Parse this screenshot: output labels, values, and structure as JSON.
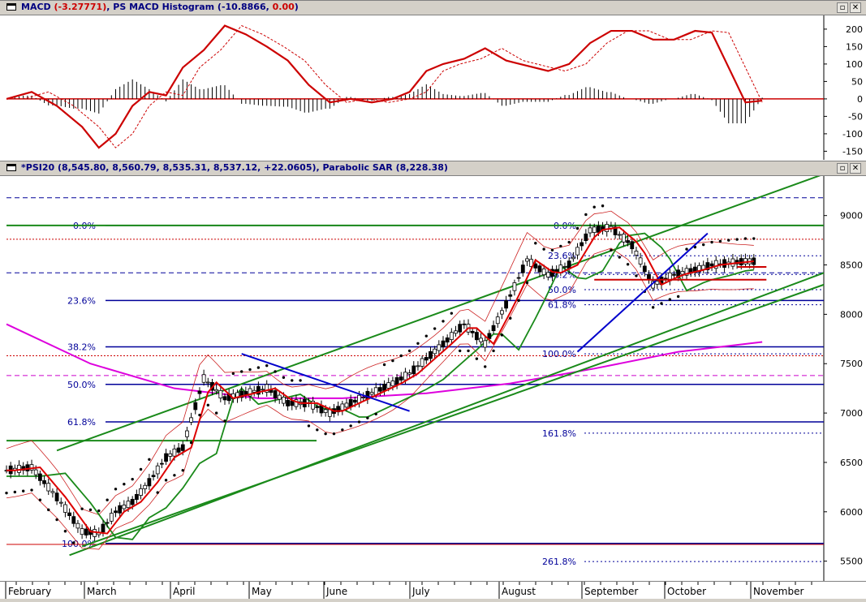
{
  "macd_pane": {
    "label_name": "MACD",
    "label_value": "(-3.27771)",
    "label_hist_name": ", PS MACD Histogram",
    "label_hist_open": " (-10.8866, ",
    "label_hist_zero": "0.00",
    "label_close": ")",
    "restore_glyph": "▫",
    "close_glyph": "✕",
    "y_ticks": [
      "200",
      "150",
      "100",
      "50",
      "0",
      "-50",
      "-100",
      "-150"
    ]
  },
  "price_pane": {
    "label_name": "*PSI20",
    "label_ohlc": " (8,545.80, 8,560.79, 8,535.31, 8,537.12, +22.0605), ",
    "label_sar": "Parabolic SAR",
    "label_sar_value": " (8,228.38)",
    "restore_glyph": "▫",
    "close_glyph": "✕",
    "y_ticks": [
      "9000",
      "8500",
      "8000",
      "7500",
      "7000",
      "6500",
      "6000",
      "5500"
    ],
    "fib_left": [
      "0.0%",
      "23.6%",
      "38.2%",
      "50.0%",
      "61.8%",
      "100.0%"
    ],
    "fib_right": [
      "0.0%",
      "23.6%",
      "38.2%",
      "50.0%",
      "61.8%",
      "100.0%",
      "161.8%",
      "261.8%"
    ]
  },
  "x_axis": {
    "months": [
      "February",
      "March",
      "April",
      "May",
      "June",
      "July",
      "August",
      "September",
      "October",
      "November"
    ]
  },
  "colors": {
    "macd": "#cc0000",
    "sar": "#000000",
    "ma_short": "#dd0000",
    "ma_long": "#1a8a1a",
    "ma_200": "#dd00dd",
    "envelope": "#cc2222",
    "trend_green": "#1a8a1a",
    "fib_blue": "#000099"
  },
  "chart_data": [
    {
      "type": "line",
      "title": "MACD / PS MACD Histogram",
      "ylim": [
        -170,
        230
      ],
      "series": [
        {
          "name": "MACD",
          "x": [
            0,
            6,
            12,
            18,
            22,
            26,
            30,
            34,
            38,
            42,
            47,
            52,
            57,
            62,
            67,
            72,
            77,
            82,
            87,
            92,
            96,
            100,
            104,
            109,
            114,
            119,
            124,
            129,
            134,
            139,
            144,
            149,
            154,
            159,
            164,
            168,
            172,
            176,
            180
          ],
          "values": [
            0,
            20,
            -20,
            -80,
            -140,
            -100,
            -20,
            20,
            10,
            90,
            140,
            210,
            185,
            150,
            110,
            40,
            -10,
            0,
            -10,
            0,
            20,
            80,
            100,
            115,
            145,
            110,
            95,
            80,
            100,
            160,
            195,
            195,
            170,
            170,
            195,
            190,
            90,
            -10,
            -5
          ]
        },
        {
          "name": "MACD Histogram",
          "values": [
            -10.8866
          ]
        }
      ]
    },
    {
      "type": "line",
      "title": "*PSI20",
      "ylim": [
        5300,
        9400
      ],
      "series": [
        {
          "name": "PSI20",
          "x": [
            0,
            6,
            12,
            18,
            22,
            26,
            30,
            34,
            38,
            42,
            47,
            52,
            57,
            62,
            67,
            72,
            77,
            82,
            87,
            92,
            96,
            100,
            104,
            109,
            114,
            119,
            124,
            129,
            134,
            139,
            144,
            149,
            154,
            159,
            164,
            168,
            172,
            176,
            180
          ],
          "values": [
            6420,
            6450,
            6150,
            5800,
            5780,
            6000,
            6100,
            6300,
            6550,
            6650,
            7350,
            7150,
            7200,
            7250,
            7100,
            7100,
            7000,
            7100,
            7200,
            7300,
            7400,
            7550,
            7700,
            7900,
            7700,
            8100,
            8550,
            8400,
            8500,
            8850,
            8880,
            8700,
            8300,
            8400,
            8450,
            8500,
            8520,
            8537,
            8537
          ]
        },
        {
          "name": "Parabolic SAR",
          "values": [
            8228.38
          ]
        }
      ]
    }
  ]
}
